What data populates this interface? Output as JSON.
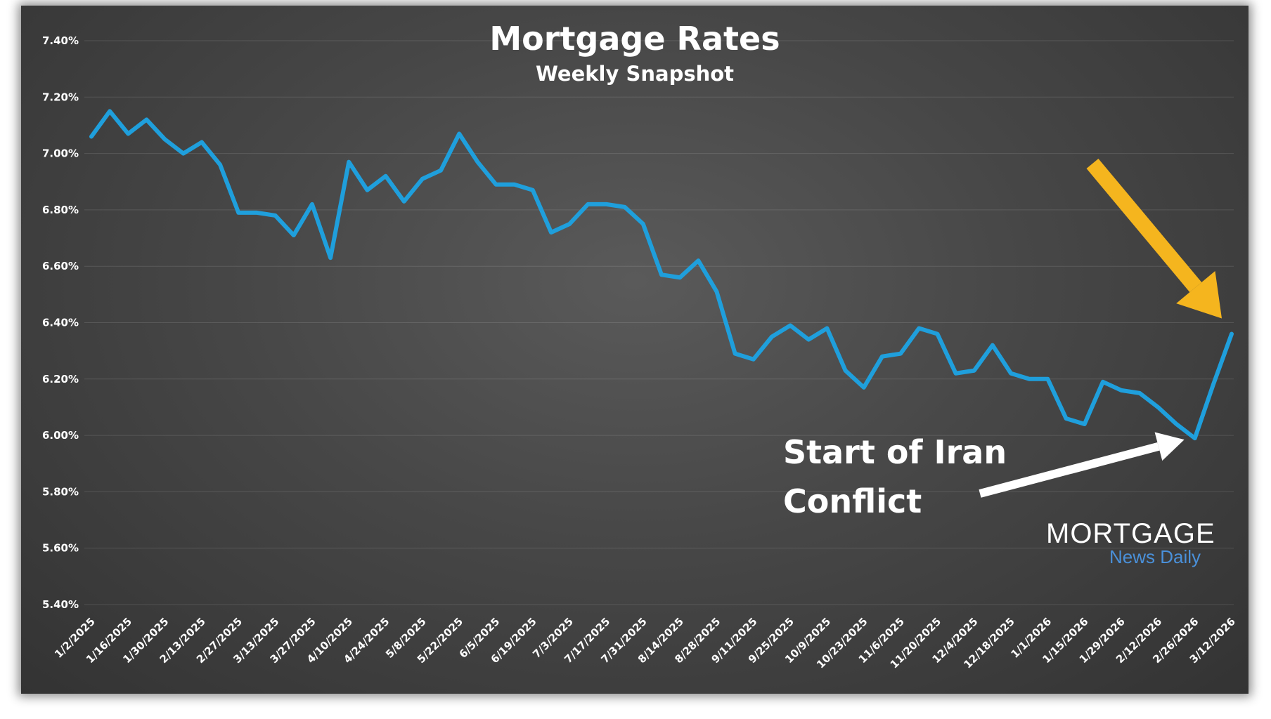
{
  "chart_data": {
    "type": "line",
    "title": "Mortgage Rates",
    "subtitle": "Weekly Snapshot",
    "ylim": [
      5.4,
      7.4
    ],
    "yticks": [
      "7.40%",
      "7.20%",
      "7.00%",
      "6.80%",
      "6.60%",
      "6.40%",
      "6.20%",
      "6.00%",
      "5.80%",
      "5.60%",
      "5.40%"
    ],
    "ytick_values": [
      7.4,
      7.2,
      7.0,
      6.8,
      6.6,
      6.4,
      6.2,
      6.0,
      5.8,
      5.6,
      5.4
    ],
    "xtick_labels": [
      "1/2/2025",
      "1/16/2025",
      "1/30/2025",
      "2/13/2025",
      "2/27/2025",
      "3/13/2025",
      "3/27/2025",
      "4/10/2025",
      "4/24/2025",
      "5/8/2025",
      "5/22/2025",
      "6/5/2025",
      "6/19/2025",
      "7/3/2025",
      "7/17/2025",
      "7/31/2025",
      "8/14/2025",
      "8/28/2025",
      "9/11/2025",
      "9/25/2025",
      "10/9/2025",
      "10/23/2025",
      "11/6/2025",
      "11/20/2025",
      "12/4/2025",
      "12/18/2025",
      "1/1/2026",
      "1/15/2026",
      "1/29/2026",
      "2/12/2026",
      "2/26/2026",
      "3/12/2026"
    ],
    "grid": true,
    "line_color": "#1f9fdc",
    "series": [
      {
        "values": [
          7.06,
          7.15,
          7.07,
          7.12,
          7.05,
          7.0,
          7.04,
          6.96,
          6.79,
          6.79,
          6.78,
          6.71,
          6.82,
          6.63,
          6.97,
          6.87,
          6.92,
          6.83,
          6.91,
          6.94,
          7.07,
          6.97,
          6.89,
          6.89,
          6.87,
          6.72,
          6.75,
          6.82,
          6.82,
          6.81,
          6.75,
          6.57,
          6.56,
          6.62,
          6.51,
          6.29,
          6.27,
          6.35,
          6.39,
          6.34,
          6.38,
          6.23,
          6.17,
          6.28,
          6.29,
          6.38,
          6.36,
          6.22,
          6.23,
          6.32,
          6.22,
          6.2,
          6.2,
          6.06,
          6.04,
          6.19,
          6.16,
          6.15,
          6.1,
          6.04,
          5.99,
          6.18,
          6.36
        ]
      }
    ],
    "annotations": [
      {
        "text_lines": [
          "Start of Iran",
          "Conflict"
        ],
        "color": "#ffffff",
        "points_to_index": 60
      },
      {
        "color": "#f5b51e",
        "points_to_index": 62
      }
    ]
  },
  "logo": {
    "main": "MORTGAGE",
    "sub": "News Daily"
  },
  "colors": {
    "arrow_yellow": "#f5b51e",
    "arrow_white": "#ffffff",
    "logo_blue": "#4a90d9"
  }
}
